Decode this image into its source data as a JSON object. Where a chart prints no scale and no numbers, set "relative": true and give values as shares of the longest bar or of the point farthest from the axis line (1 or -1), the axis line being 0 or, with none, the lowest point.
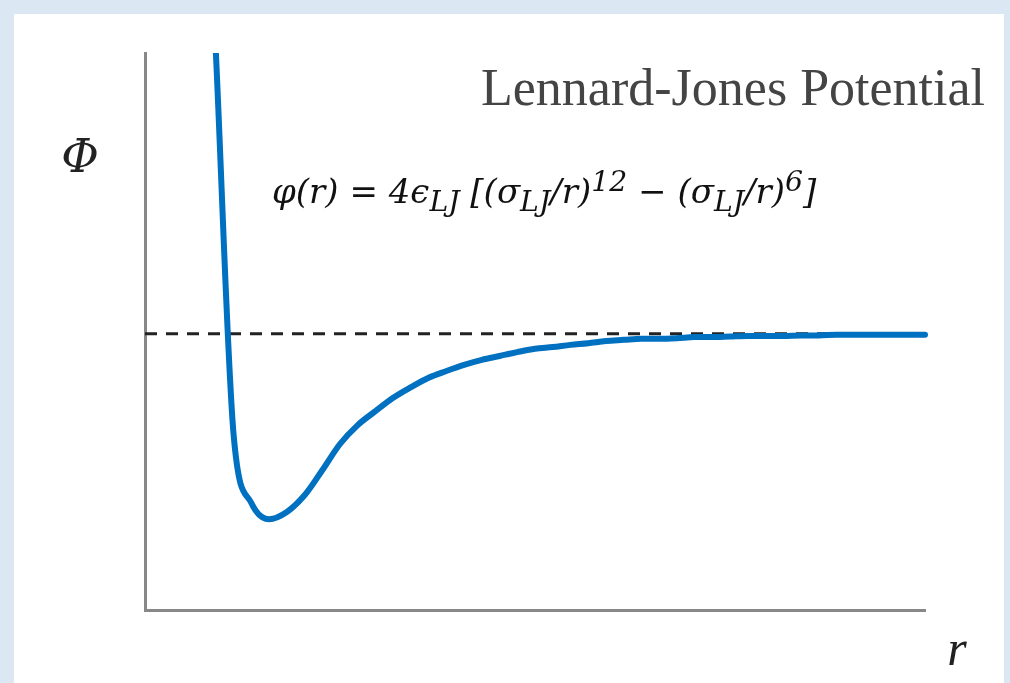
{
  "chart_data": {
    "type": "line",
    "title": "Lennard-Jones Potential",
    "xlabel": "r",
    "ylabel": "Φ",
    "annotations": [
      "φ(r) = 4ϵ$_{LJ}$ [(σ$_{LJ}$/r)$^{12}$ − (σ$_{LJ}$/r)$^{6}$]"
    ],
    "relative": true,
    "marker": "none",
    "categories": [
      null,
      null,
      null,
      null,
      null,
      null,
      null,
      null,
      null,
      null,
      null,
      null,
      null,
      null,
      null,
      null,
      null,
      null,
      null,
      null,
      null,
      null,
      null,
      null,
      null,
      null,
      null,
      null,
      null,
      null,
      null,
      null,
      null,
      null,
      null,
      null,
      null,
      null,
      null,
      null,
      null,
      null,
      null,
      null,
      null
    ],
    "series": [
      {
        "color": "#0070c0",
        "values": [
          null,
          null,
          null,
          null,
          1.0,
          0.314,
          0.192,
          0.163,
          0.176,
          0.206,
          0.251,
          0.298,
          0.332,
          0.357,
          0.381,
          0.4,
          0.417,
          0.429,
          0.44,
          0.449,
          0.456,
          0.463,
          0.469,
          0.472,
          0.476,
          0.479,
          0.483,
          0.485,
          0.487,
          0.487,
          0.488,
          0.49,
          0.49,
          0.491,
          0.492,
          0.492,
          0.492,
          0.493,
          0.493,
          0.494,
          0.494,
          0.494,
          0.494,
          0.494,
          0.494
        ]
      }
    ],
    "ref_lines": [
      {
        "axis": "y",
        "value": 0.496,
        "color": "#222222",
        "line_style": "dashed"
      }
    ]
  }
}
